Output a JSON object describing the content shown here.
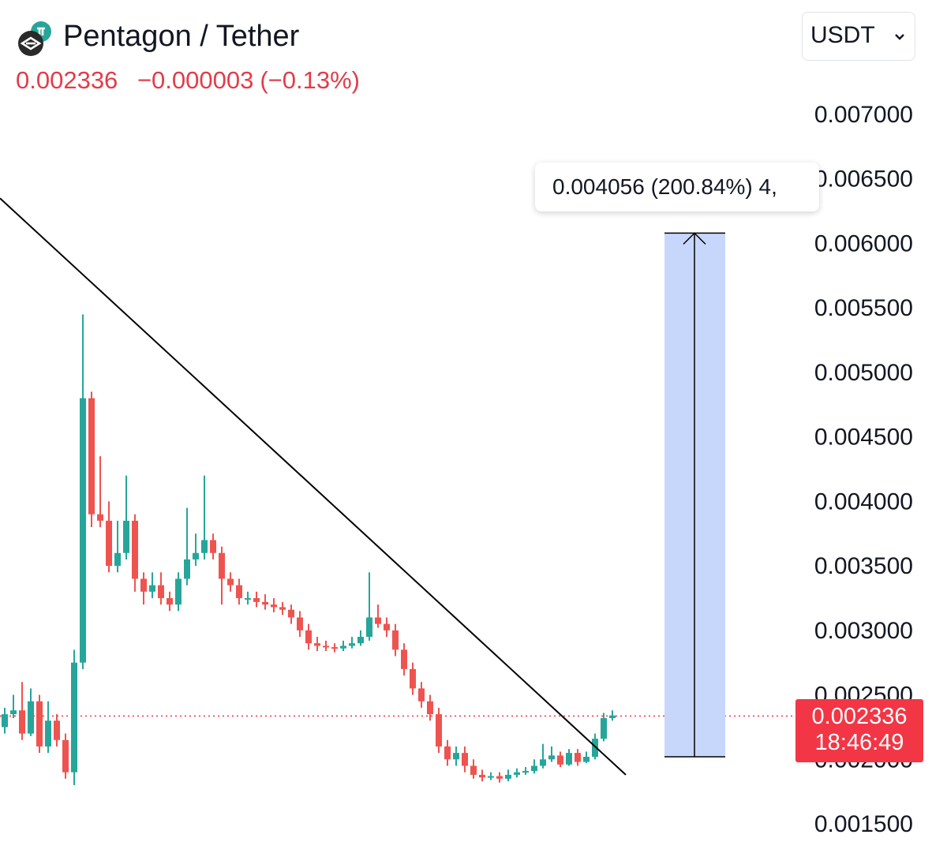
{
  "header": {
    "pair_title": "Pentagon / Tether",
    "last_price": "0.002336",
    "change_abs": "−0.000003",
    "change_pct": "(−0.13%)",
    "logo_icon": "pentagon-logo-icon"
  },
  "currency_select": {
    "value": "USDT",
    "icon": "chevron-down-icon"
  },
  "colors": {
    "up": "#26a69a",
    "down": "#ef5350",
    "negative_text": "#e23c4a",
    "measure_fill": "#c7d6fb",
    "price_tag": "#f23645"
  },
  "measure": {
    "label": "0.004056 (200.84%) 4,",
    "from": 0.00202,
    "to": 0.00608
  },
  "price_tag": {
    "price": "0.002336",
    "countdown": "18:46:49"
  },
  "chart_data": {
    "type": "candlestick",
    "y_ticks": [
      "0.007000",
      "0.006500",
      "0.006000",
      "0.005500",
      "0.005000",
      "0.004500",
      "0.004000",
      "0.003500",
      "0.003000",
      "0.002500",
      "0.002000",
      "0.001500"
    ],
    "ylim": [
      0.0015,
      0.007
    ],
    "current_price": 0.002336,
    "trendline": {
      "start": [
        0,
        0.00635
      ],
      "end": [
        80,
        0.00188
      ]
    },
    "candles": [
      [
        0.00225,
        0.00235,
        0.0024,
        0.0022
      ],
      [
        0.00235,
        0.00238,
        0.0025,
        0.00232
      ],
      [
        0.00238,
        0.0022,
        0.0026,
        0.00215
      ],
      [
        0.0022,
        0.00245,
        0.00255,
        0.00218
      ],
      [
        0.00245,
        0.0021,
        0.0025,
        0.00205
      ],
      [
        0.0021,
        0.0023,
        0.00245,
        0.00205
      ],
      [
        0.0023,
        0.00215,
        0.00235,
        0.0021
      ],
      [
        0.00215,
        0.0019,
        0.0022,
        0.00185
      ],
      [
        0.0019,
        0.00275,
        0.00285,
        0.0018
      ],
      [
        0.00275,
        0.0048,
        0.00545,
        0.0027
      ],
      [
        0.0048,
        0.0039,
        0.00485,
        0.0038
      ],
      [
        0.0039,
        0.00385,
        0.00435,
        0.0038
      ],
      [
        0.00385,
        0.0035,
        0.004,
        0.00345
      ],
      [
        0.0035,
        0.0036,
        0.00385,
        0.00345
      ],
      [
        0.0036,
        0.00385,
        0.0042,
        0.00355
      ],
      [
        0.00385,
        0.0034,
        0.0039,
        0.0033
      ],
      [
        0.0034,
        0.0033,
        0.00345,
        0.0032
      ],
      [
        0.0033,
        0.00335,
        0.00345,
        0.00325
      ],
      [
        0.00335,
        0.00325,
        0.00345,
        0.0032
      ],
      [
        0.00325,
        0.0032,
        0.0033,
        0.00315
      ],
      [
        0.0032,
        0.0034,
        0.00345,
        0.00315
      ],
      [
        0.0034,
        0.00355,
        0.00395,
        0.00335
      ],
      [
        0.00355,
        0.0036,
        0.00375,
        0.0035
      ],
      [
        0.0036,
        0.0037,
        0.0042,
        0.00355
      ],
      [
        0.0037,
        0.0036,
        0.00375,
        0.00355
      ],
      [
        0.0036,
        0.0034,
        0.00365,
        0.0032
      ],
      [
        0.0034,
        0.00335,
        0.00345,
        0.0033
      ],
      [
        0.00335,
        0.00325,
        0.0034,
        0.0032
      ],
      [
        0.00325,
        0.00325,
        0.0033,
        0.0032
      ],
      [
        0.00325,
        0.00322,
        0.0033,
        0.00318
      ],
      [
        0.00322,
        0.0032,
        0.00328,
        0.00316
      ],
      [
        0.0032,
        0.00318,
        0.00325,
        0.00314
      ],
      [
        0.00318,
        0.00316,
        0.00322,
        0.00312
      ],
      [
        0.00316,
        0.0031,
        0.0032,
        0.00305
      ],
      [
        0.0031,
        0.003,
        0.00315,
        0.00295
      ],
      [
        0.003,
        0.0029,
        0.00305,
        0.00285
      ],
      [
        0.0029,
        0.00288,
        0.00295,
        0.00284
      ],
      [
        0.00288,
        0.00287,
        0.00292,
        0.00284
      ],
      [
        0.00287,
        0.00286,
        0.0029,
        0.00283
      ],
      [
        0.00286,
        0.00288,
        0.00292,
        0.00284
      ],
      [
        0.00288,
        0.0029,
        0.00295,
        0.00286
      ],
      [
        0.0029,
        0.00295,
        0.003,
        0.00288
      ],
      [
        0.00295,
        0.0031,
        0.00345,
        0.00292
      ],
      [
        0.0031,
        0.00305,
        0.0032,
        0.00302
      ],
      [
        0.00305,
        0.003,
        0.0031,
        0.00295
      ],
      [
        0.003,
        0.00285,
        0.00305,
        0.0028
      ],
      [
        0.00285,
        0.0027,
        0.0029,
        0.00265
      ],
      [
        0.0027,
        0.00255,
        0.00275,
        0.0025
      ],
      [
        0.00255,
        0.00245,
        0.0026,
        0.0024
      ],
      [
        0.00245,
        0.00235,
        0.0025,
        0.0023
      ],
      [
        0.00235,
        0.0021,
        0.0024,
        0.00205
      ],
      [
        0.0021,
        0.002,
        0.00215,
        0.00195
      ],
      [
        0.002,
        0.00205,
        0.0021,
        0.00195
      ],
      [
        0.00205,
        0.00195,
        0.0021,
        0.0019
      ],
      [
        0.00195,
        0.00188,
        0.002,
        0.00185
      ],
      [
        0.00188,
        0.00186,
        0.00192,
        0.00183
      ],
      [
        0.00186,
        0.00187,
        0.0019,
        0.00184
      ],
      [
        0.00187,
        0.00185,
        0.0019,
        0.00182
      ],
      [
        0.00185,
        0.00188,
        0.00192,
        0.00183
      ],
      [
        0.00188,
        0.0019,
        0.00193,
        0.00186
      ],
      [
        0.0019,
        0.00191,
        0.00194,
        0.00188
      ],
      [
        0.00191,
        0.00195,
        0.002,
        0.00189
      ],
      [
        0.00195,
        0.002,
        0.00212,
        0.00193
      ],
      [
        0.002,
        0.00203,
        0.0021,
        0.00198
      ],
      [
        0.00203,
        0.00196,
        0.00206,
        0.00194
      ],
      [
        0.00196,
        0.00205,
        0.00208,
        0.00195
      ],
      [
        0.00205,
        0.00198,
        0.00208,
        0.00195
      ],
      [
        0.00198,
        0.00202,
        0.00206,
        0.00197
      ],
      [
        0.00202,
        0.00216,
        0.0022,
        0.002
      ],
      [
        0.00216,
        0.00232,
        0.00236,
        0.00214
      ],
      [
        0.00232,
        0.00234,
        0.00238,
        0.0023
      ]
    ]
  }
}
